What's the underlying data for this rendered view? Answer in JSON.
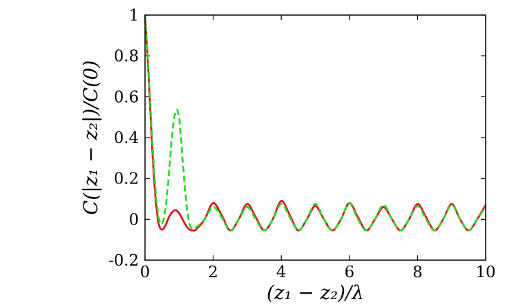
{
  "chart_data": {
    "type": "line",
    "title": "",
    "xlabel": "(z₁ − z₂)/λ",
    "ylabel": "C(|z₁ − z₂|)/C(0)",
    "xlim": [
      0,
      10
    ],
    "ylim": [
      -0.2,
      1
    ],
    "x_ticks": [
      "0",
      "2",
      "4",
      "6",
      "8",
      "10"
    ],
    "y_ticks": [
      "-0.2",
      "0",
      "0.2",
      "0.4",
      "0.6",
      "0.8",
      "1"
    ],
    "grid": false,
    "legend": "none",
    "series": [
      {
        "color": "#e8101a",
        "style": "solid",
        "x": [
          0,
          0.1,
          0.2,
          0.3,
          0.4,
          0.5,
          0.6,
          0.7,
          0.8,
          0.9,
          1.0,
          1.1,
          1.2,
          1.3,
          1.4,
          1.5,
          1.75,
          2.0,
          2.25,
          2.5,
          2.75,
          3.0,
          3.25,
          3.5,
          3.75,
          4.0,
          4.25,
          4.5,
          4.75,
          5.0,
          5.25,
          5.5,
          5.75,
          6.0,
          6.25,
          6.5,
          6.75,
          7.0,
          7.25,
          7.5,
          7.75,
          8.0,
          8.25,
          8.5,
          8.75,
          9.0,
          9.25,
          9.5,
          9.75,
          10.0
        ],
        "y": [
          1.0,
          0.72,
          0.38,
          0.12,
          -0.02,
          -0.05,
          -0.03,
          0.01,
          0.035,
          0.045,
          0.03,
          0.0,
          -0.03,
          -0.05,
          -0.055,
          -0.05,
          0.0,
          0.08,
          0.02,
          -0.055,
          0.0,
          0.075,
          0.01,
          -0.055,
          0.0,
          0.09,
          0.02,
          -0.055,
          0.0,
          0.065,
          0.0,
          -0.055,
          0.0,
          0.08,
          0.01,
          -0.055,
          0.0,
          0.06,
          0.0,
          -0.055,
          0.0,
          0.075,
          0.01,
          -0.055,
          0.0,
          0.075,
          0.0,
          -0.055,
          0.0,
          0.07
        ]
      },
      {
        "color": "#22dd22",
        "style": "dashed",
        "x": [
          0,
          0.1,
          0.2,
          0.3,
          0.4,
          0.5,
          0.6,
          0.7,
          0.8,
          0.9,
          1.0,
          1.1,
          1.2,
          1.3,
          1.4,
          1.5,
          1.75,
          2.0,
          2.25,
          2.5,
          2.75,
          3.0,
          3.25,
          3.5,
          3.75,
          4.0,
          4.25,
          4.5,
          4.75,
          5.0,
          5.25,
          5.5,
          5.75,
          6.0,
          6.25,
          6.5,
          6.75,
          7.0,
          7.25,
          7.5,
          7.75,
          8.0,
          8.25,
          8.5,
          8.75,
          9.0,
          9.25,
          9.5,
          9.75,
          10.0
        ],
        "y": [
          1.0,
          0.74,
          0.42,
          0.16,
          0.01,
          -0.02,
          0.05,
          0.22,
          0.42,
          0.53,
          0.5,
          0.3,
          0.1,
          -0.02,
          -0.045,
          -0.04,
          0.0,
          0.06,
          0.01,
          -0.055,
          0.0,
          0.06,
          0.0,
          -0.055,
          0.0,
          0.075,
          0.01,
          -0.055,
          0.0,
          0.075,
          0.0,
          -0.055,
          0.0,
          0.08,
          0.0,
          -0.055,
          0.0,
          0.07,
          0.0,
          -0.055,
          0.0,
          0.065,
          0.0,
          -0.055,
          0.0,
          0.07,
          0.0,
          -0.055,
          0.0,
          0.06
        ]
      }
    ]
  }
}
